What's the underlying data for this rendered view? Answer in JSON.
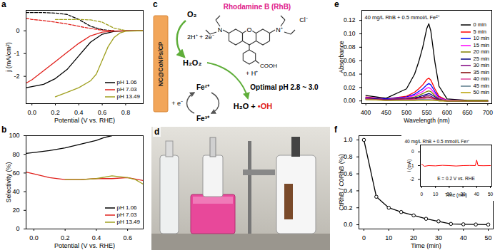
{
  "chart_data": [
    {
      "panel": "a",
      "type": "line",
      "x_label": "Potential (V vs. RHE)",
      "y_label": "j (mA/cm²)",
      "xlim": [
        -0.05,
        0.95
      ],
      "xticks": [
        {
          "value": 0,
          "label": "0.0"
        },
        0.2,
        0.4,
        0.6,
        0.8
      ],
      "ylim": [
        -3.2,
        0.9
      ],
      "yticks": [
        -2,
        -1,
        0
      ],
      "legend": "bottom-right",
      "series": [
        {
          "name": "pH 1.06",
          "color": "#000000",
          "line_style": "solid",
          "x": [
            -0.05,
            0,
            0.1,
            0.2,
            0.3,
            0.4,
            0.5,
            0.6,
            0.7,
            0.8,
            0.9,
            0.95
          ],
          "values": [
            -2.5,
            -2.45,
            -2.35,
            -2.1,
            -1.7,
            -1.1,
            -0.5,
            -0.15,
            -0.03,
            0,
            0,
            0
          ]
        },
        {
          "name": "pH 7.03",
          "color": "#e0201b",
          "line_style": "solid",
          "x": [
            -0.05,
            0,
            0.1,
            0.2,
            0.3,
            0.4,
            0.5,
            0.6,
            0.7,
            0.8,
            0.9,
            0.95
          ],
          "values": [
            -2.3,
            -2.15,
            -1.75,
            -1.35,
            -0.95,
            -0.55,
            -0.22,
            -0.06,
            -0.01,
            0,
            0,
            0
          ]
        },
        {
          "name": "pH 13.49",
          "color": "#a0a020",
          "line_style": "solid",
          "x": [
            0.2,
            0.3,
            0.4,
            0.5,
            0.55,
            0.6,
            0.65,
            0.7,
            0.75,
            0.8,
            0.9,
            0.95
          ],
          "values": [
            -2.9,
            -2.7,
            -2.5,
            -2.2,
            -1.9,
            -1.3,
            -0.7,
            -0.3,
            -0.1,
            -0.02,
            0,
            0
          ]
        },
        {
          "name": "pH 1.06",
          "color": "#000000",
          "line_style": "dashed",
          "x": [
            -0.05,
            0,
            0.1,
            0.2,
            0.3,
            0.4,
            0.5,
            0.6,
            0.7
          ],
          "values": [
            0.8,
            0.8,
            0.8,
            0.78,
            0.72,
            0.5,
            0.2,
            0.05,
            0
          ]
        },
        {
          "name": "pH 7.03",
          "color": "#e0201b",
          "line_style": "dashed",
          "x": [
            -0.05,
            0,
            0.1,
            0.2,
            0.3,
            0.4,
            0.5,
            0.6,
            0.7
          ],
          "values": [
            0.55,
            0.5,
            0.45,
            0.38,
            0.3,
            0.2,
            0.1,
            0.03,
            0
          ]
        },
        {
          "name": "pH 13.49",
          "color": "#a0a020",
          "line_style": "dashed",
          "x": [
            0.2,
            0.3,
            0.4,
            0.5,
            0.6,
            0.7,
            0.8
          ],
          "values": [
            0.5,
            0.5,
            0.5,
            0.48,
            0.38,
            0.12,
            0.01
          ]
        }
      ]
    },
    {
      "panel": "b",
      "type": "line",
      "x_label": "Potential (V vs. RHE)",
      "y_label": "Selectivity (%)",
      "xlim": [
        -0.05,
        0.7
      ],
      "xticks": [
        {
          "value": 0,
          "label": "0.0"
        },
        0.2,
        0.4,
        0.6
      ],
      "ylim": [
        0,
        100
      ],
      "yticks": [
        0,
        20,
        40,
        60,
        80,
        100
      ],
      "legend": "bottom-right",
      "series": [
        {
          "name": "pH 1.06",
          "color": "#000000",
          "line_style": "solid",
          "x": [
            -0.05,
            0,
            0.1,
            0.2,
            0.3,
            0.4,
            0.45,
            0.5
          ],
          "values": [
            81,
            82,
            84,
            87,
            91,
            95,
            98,
            100
          ]
        },
        {
          "name": "pH 7.03",
          "color": "#e0201b",
          "line_style": "solid",
          "x": [
            -0.05,
            0,
            0.1,
            0.2,
            0.3,
            0.4,
            0.5,
            0.6,
            0.7
          ],
          "values": [
            61,
            59,
            55,
            53,
            53,
            54,
            54,
            55,
            52
          ]
        },
        {
          "name": "pH 13.49",
          "color": "#a0a020",
          "line_style": "solid",
          "x": [
            0.2,
            0.3,
            0.4,
            0.5,
            0.55,
            0.6,
            0.65,
            0.7
          ],
          "values": [
            53,
            53,
            54,
            57,
            56,
            55,
            53,
            48
          ]
        }
      ]
    },
    {
      "panel": "e",
      "type": "line",
      "x_label": "Wavelength (nm)",
      "y_label": "Absorbance",
      "annotation": "40 mg/L RhB + 0.5 mmol/L Fe²⁺",
      "xlim": [
        390,
        710
      ],
      "xticks": [
        400,
        450,
        500,
        550,
        600,
        650,
        700
      ],
      "ylim": [
        -0.004,
        0.135
      ],
      "yticks": [
        {
          "value": 0,
          "label": "0.00"
        },
        0.02,
        0.04,
        0.06,
        0.08,
        {
          "value": 0.1,
          "label": "0.10"
        },
        0.12
      ],
      "legend": "top-right",
      "x": [
        400,
        450,
        500,
        520,
        530,
        540,
        550,
        555,
        560,
        570,
        580,
        600,
        650,
        700
      ],
      "series": [
        {
          "name": "0 min",
          "color": "#000000",
          "values": [
            0.008,
            0.004,
            0.018,
            0.04,
            0.058,
            0.08,
            0.108,
            0.115,
            0.104,
            0.058,
            0.022,
            0.003,
            0.001,
            0.001
          ]
        },
        {
          "name": "5 min",
          "color": "#ff0000",
          "values": [
            0.006,
            0.003,
            0.007,
            0.013,
            0.018,
            0.024,
            0.032,
            0.034,
            0.031,
            0.018,
            0.007,
            0.001,
            0,
            0
          ]
        },
        {
          "name": "10 min",
          "color": "#0000ff",
          "values": [
            0.005,
            0.003,
            0.006,
            0.01,
            0.014,
            0.018,
            0.024,
            0.026,
            0.024,
            0.014,
            0.005,
            0.001,
            0,
            0
          ]
        },
        {
          "name": "15 min",
          "color": "#ff00ff",
          "values": [
            0.005,
            0.002,
            0.005,
            0.008,
            0.011,
            0.014,
            0.019,
            0.02,
            0.018,
            0.011,
            0.004,
            0.001,
            0,
            0
          ]
        },
        {
          "name": "20 min",
          "color": "#808000",
          "values": [
            0.004,
            0.002,
            0.004,
            0.006,
            0.008,
            0.011,
            0.014,
            0.015,
            0.014,
            0.008,
            0.003,
            0,
            0,
            0
          ]
        },
        {
          "name": "25 min",
          "color": "#000080",
          "values": [
            0.004,
            0.002,
            0.003,
            0.005,
            0.006,
            0.008,
            0.01,
            0.011,
            0.01,
            0.006,
            0.002,
            0,
            0,
            0
          ]
        },
        {
          "name": "30 min",
          "color": "#800080",
          "values": [
            0.003,
            0.002,
            0.003,
            0.004,
            0.005,
            0.006,
            0.008,
            0.008,
            0.007,
            0.004,
            0.002,
            0,
            0,
            0
          ]
        },
        {
          "name": "35 min",
          "color": "#800000",
          "values": [
            0.003,
            0.001,
            0.002,
            0.003,
            0.004,
            0.005,
            0.006,
            0.006,
            0.005,
            0.003,
            0.001,
            0,
            0,
            0
          ]
        },
        {
          "name": "40 min",
          "color": "#e0449a",
          "values": [
            0.003,
            0.001,
            0.002,
            0.002,
            0.003,
            0.003,
            0.004,
            0.004,
            0.004,
            0.002,
            0.001,
            0,
            0,
            0
          ]
        },
        {
          "name": "45 min",
          "color": "#5a7a8a",
          "values": [
            0.002,
            0.001,
            0.001,
            0.001,
            0.002,
            0.002,
            0.002,
            0.002,
            0.002,
            0.001,
            0.001,
            0,
            0,
            0
          ]
        },
        {
          "name": "50 min",
          "color": "#b8a000",
          "values": [
            0.002,
            0.001,
            0.001,
            0.001,
            0.001,
            0.001,
            0.001,
            0.001,
            0.001,
            0.001,
            0,
            0,
            0,
            0
          ]
        }
      ]
    },
    {
      "panel": "f",
      "type": "line",
      "x_label": "Time (min)",
      "y_label": "CtRhB / C0RhB (%)",
      "annotation": "40 mg/L RhB + 0.5 mmol/L Fe²⁺",
      "xlim": [
        -2,
        52
      ],
      "xticks": [
        0,
        10,
        20,
        30,
        40,
        50
      ],
      "ylim": [
        -0.05,
        1.05
      ],
      "yticks": [
        {
          "value": 0,
          "label": "0.0"
        },
        0.2,
        0.4,
        0.6,
        0.8,
        {
          "value": 1,
          "label": "1.0"
        }
      ],
      "series": [
        {
          "color": "#000000",
          "marker": "circle",
          "x": [
            0,
            5,
            10,
            15,
            20,
            25,
            30,
            35,
            40,
            45,
            50
          ],
          "values": [
            1.0,
            0.33,
            0.2,
            0.15,
            0.11,
            0.07,
            0.04,
            0.01,
            0.005,
            0.003,
            0.002
          ]
        }
      ],
      "inset": {
        "type": "line",
        "x_label": "Time (min)",
        "y_label": "i (mA)",
        "annotation": "E = 0.2 V vs. RHE",
        "xlim": [
          -1,
          51
        ],
        "xticks": [
          0,
          10,
          20,
          30,
          40,
          50
        ],
        "ylim": [
          -2.5,
          0.5
        ],
        "yticks": [
          -2,
          -1,
          0
        ],
        "series": [
          {
            "color": "#ff0000",
            "x": [
              0,
              2,
              5,
              10,
              15,
              20,
              25,
              30,
              35,
              39,
              40,
              41,
              45,
              50
            ],
            "values": [
              -0.9,
              -1.05,
              -1.0,
              -1.02,
              -0.98,
              -1.0,
              -1.03,
              -1.0,
              -0.99,
              -1.0,
              -0.6,
              -1.0,
              -1.01,
              -1.0
            ]
          }
        ]
      }
    }
  ],
  "diagram": {
    "panel": "c",
    "electrode": "NC@CoNPs/CP",
    "title": "Rhodamine B (RhB)",
    "o2": "O₂",
    "electrons": "2H⁺ + 2e⁻",
    "h2o2": "H₂O₂",
    "fe2": "Fe²⁺",
    "fe3": "Fe³⁺",
    "plus_h": "+ H⁺",
    "plus_e": "+ e⁻",
    "products": {
      "text": "H₂O +",
      "radical": "•OH"
    },
    "optimal_ph": "Optimal pH 2.8 ~ 3.0",
    "atoms": {
      "n_left": "N",
      "o": "O",
      "n_right": "N⁺",
      "cl": "Cl⁻",
      "cooh": "COOH"
    }
  },
  "photo": {
    "panel": "d"
  }
}
